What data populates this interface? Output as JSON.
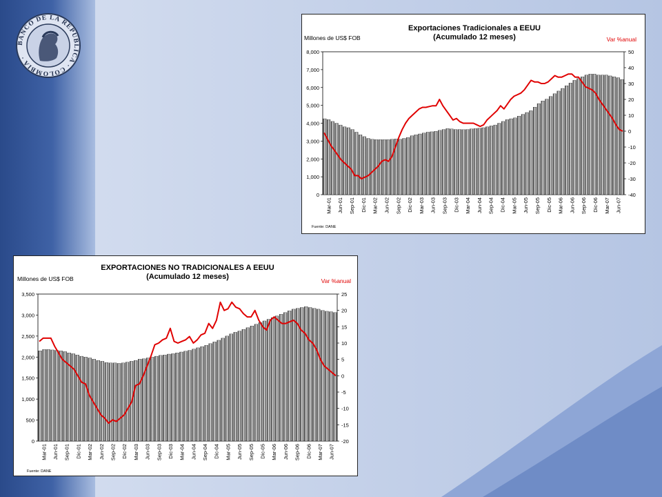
{
  "logo": {
    "text": "BANCO DE LA REPUBLICA · COLOMBIA ·"
  },
  "colors": {
    "bar_dark": "#2a2a2a",
    "bar_light": "#d8d8d8",
    "line": "#e00000",
    "text": "#000000",
    "var_label": "#e00000"
  },
  "chart_data": [
    {
      "type": "bar",
      "title": "Exportaciones Tradicionales a EEUU",
      "subtitle": "(Acumulado 12 meses)",
      "ylabel": "Millones de US$ FOB",
      "y2label": "Var %anual",
      "source": "Fuente: DANE",
      "ylim": [
        0,
        8000
      ],
      "y2lim": [
        -40,
        50
      ],
      "yticks": [
        "0",
        "1,000",
        "2,000",
        "3,000",
        "4,000",
        "5,000",
        "6,000",
        "7,000",
        "8,000"
      ],
      "y2ticks": [
        "-40",
        "-30",
        "-20",
        "-10",
        "0",
        "10",
        "20",
        "30",
        "40",
        "50"
      ],
      "xticklabels": [
        "Mar-01",
        "Jun-01",
        "Sep-01",
        "Dic-01",
        "Mar-02",
        "Jun-02",
        "Sep-02",
        "Dic-02",
        "Mar-03",
        "Jun-03",
        "Sep-03",
        "Dic-03",
        "Mar-04",
        "Jun-04",
        "Sep-04",
        "Dic-04",
        "Mar-05",
        "Jun-05",
        "Sep-05",
        "Dic-05",
        "Mar-06",
        "Jun-06",
        "Sep-06",
        "Dic-06",
        "Mar-07",
        "Jun-07"
      ],
      "series": [
        {
          "values": [
            4250,
            4200,
            4100,
            4000,
            3900,
            3800,
            3750,
            3650,
            3500,
            3350,
            3250,
            3150,
            3100,
            3080,
            3080,
            3080,
            3080,
            3100,
            3120,
            3100,
            3150,
            3200,
            3300,
            3350,
            3400,
            3450,
            3500,
            3520,
            3550,
            3600,
            3650,
            3700,
            3680,
            3650,
            3650,
            3640,
            3650,
            3680,
            3700,
            3720,
            3750,
            3800,
            3850,
            3900,
            4000,
            4100,
            4200,
            4250,
            4300,
            4400,
            4500,
            4600,
            4700,
            4900,
            5100,
            5250,
            5350,
            5500,
            5650,
            5800,
            5950,
            6100,
            6250,
            6400,
            6500,
            6600,
            6700,
            6750,
            6750,
            6700,
            6700,
            6700,
            6650,
            6600,
            6550,
            6450
          ]
        },
        {
          "values": [
            -1,
            -5,
            -9,
            -12,
            -15,
            -18,
            -20,
            -22,
            -24,
            -28,
            -28,
            -30,
            -29,
            -28,
            -26,
            -24,
            -22,
            -19,
            -18,
            -19,
            -16,
            -10,
            -4,
            1,
            5,
            8,
            10,
            12,
            14,
            15,
            15,
            15.5,
            16,
            16,
            20,
            16,
            13,
            10,
            7,
            8,
            6,
            5,
            5,
            5,
            5,
            4,
            3,
            4,
            7,
            9,
            11,
            13,
            16,
            14,
            17,
            20,
            22,
            23,
            24,
            26,
            29,
            32,
            31,
            31,
            30,
            30,
            31,
            33,
            35,
            34,
            34,
            35,
            36,
            36,
            34,
            34,
            31,
            28,
            27,
            26,
            24,
            20,
            17,
            14,
            11,
            8,
            4,
            1,
            0
          ]
        }
      ]
    },
    {
      "type": "bar",
      "title": "EXPORTACIONES NO TRADICIONALES A EEUU",
      "subtitle": "(Acumulado 12 meses)",
      "ylabel": "Millones de US$ FOB",
      "y2label": "Var %anual",
      "source": "Fuente: DANE",
      "ylim": [
        0,
        3500
      ],
      "y2lim": [
        -20,
        25
      ],
      "yticks": [
        "0",
        "500",
        "1,000",
        "1,500",
        "2,000",
        "2,500",
        "3,000",
        "3,500"
      ],
      "y2ticks": [
        "-20",
        "-15",
        "-10",
        "-5",
        "0",
        "5",
        "10",
        "15",
        "20",
        "25"
      ],
      "xticklabels": [
        "Mar-01",
        "Jun-01",
        "Sep-01",
        "Dic-01",
        "Mar-02",
        "Jun-02",
        "Sep-02",
        "Dic-02",
        "Mar-03",
        "Jun-03",
        "Sep-03",
        "Dic-03",
        "Mar-04",
        "Jun-04",
        "Sep-04",
        "Dic-04",
        "Mar-05",
        "Jun-05",
        "Sep-05",
        "Dic-05",
        "Mar-06",
        "Jun-06",
        "Sep-06",
        "Dic-06",
        "Mar-07",
        "Jun-07"
      ],
      "series": [
        {
          "values": [
            2150,
            2180,
            2180,
            2170,
            2160,
            2150,
            2130,
            2100,
            2080,
            2050,
            2020,
            2000,
            1980,
            1950,
            1920,
            1900,
            1870,
            1860,
            1860,
            1850,
            1860,
            1880,
            1900,
            1920,
            1950,
            1960,
            1980,
            2000,
            2020,
            2040,
            2050,
            2070,
            2080,
            2100,
            2120,
            2140,
            2160,
            2190,
            2220,
            2250,
            2280,
            2320,
            2360,
            2400,
            2450,
            2500,
            2550,
            2590,
            2620,
            2660,
            2700,
            2740,
            2780,
            2820,
            2860,
            2900,
            2940,
            2980,
            3020,
            3060,
            3100,
            3140,
            3160,
            3180,
            3200,
            3180,
            3160,
            3140,
            3110,
            3090,
            3080,
            3060
          ]
        },
        {
          "values": [
            10.5,
            11.5,
            11.5,
            11.5,
            9,
            7,
            5,
            4,
            3,
            2,
            0,
            -2,
            -2.5,
            -6,
            -8,
            -10,
            -12,
            -13,
            -14.5,
            -13.5,
            -14,
            -13,
            -12,
            -10,
            -8,
            -3,
            -2.5,
            0,
            3,
            6,
            9.5,
            10,
            11,
            11.5,
            14.5,
            10.5,
            10,
            10.5,
            11,
            12,
            10,
            11,
            12.5,
            13,
            16,
            14.5,
            17,
            22.5,
            20,
            20.5,
            22.5,
            21,
            20.5,
            19,
            18,
            18,
            20,
            17,
            15,
            14,
            17,
            18,
            17,
            16,
            16,
            16.5,
            17,
            16,
            14,
            13,
            11,
            10,
            8,
            5,
            3,
            2,
            1,
            0
          ]
        }
      ]
    }
  ]
}
